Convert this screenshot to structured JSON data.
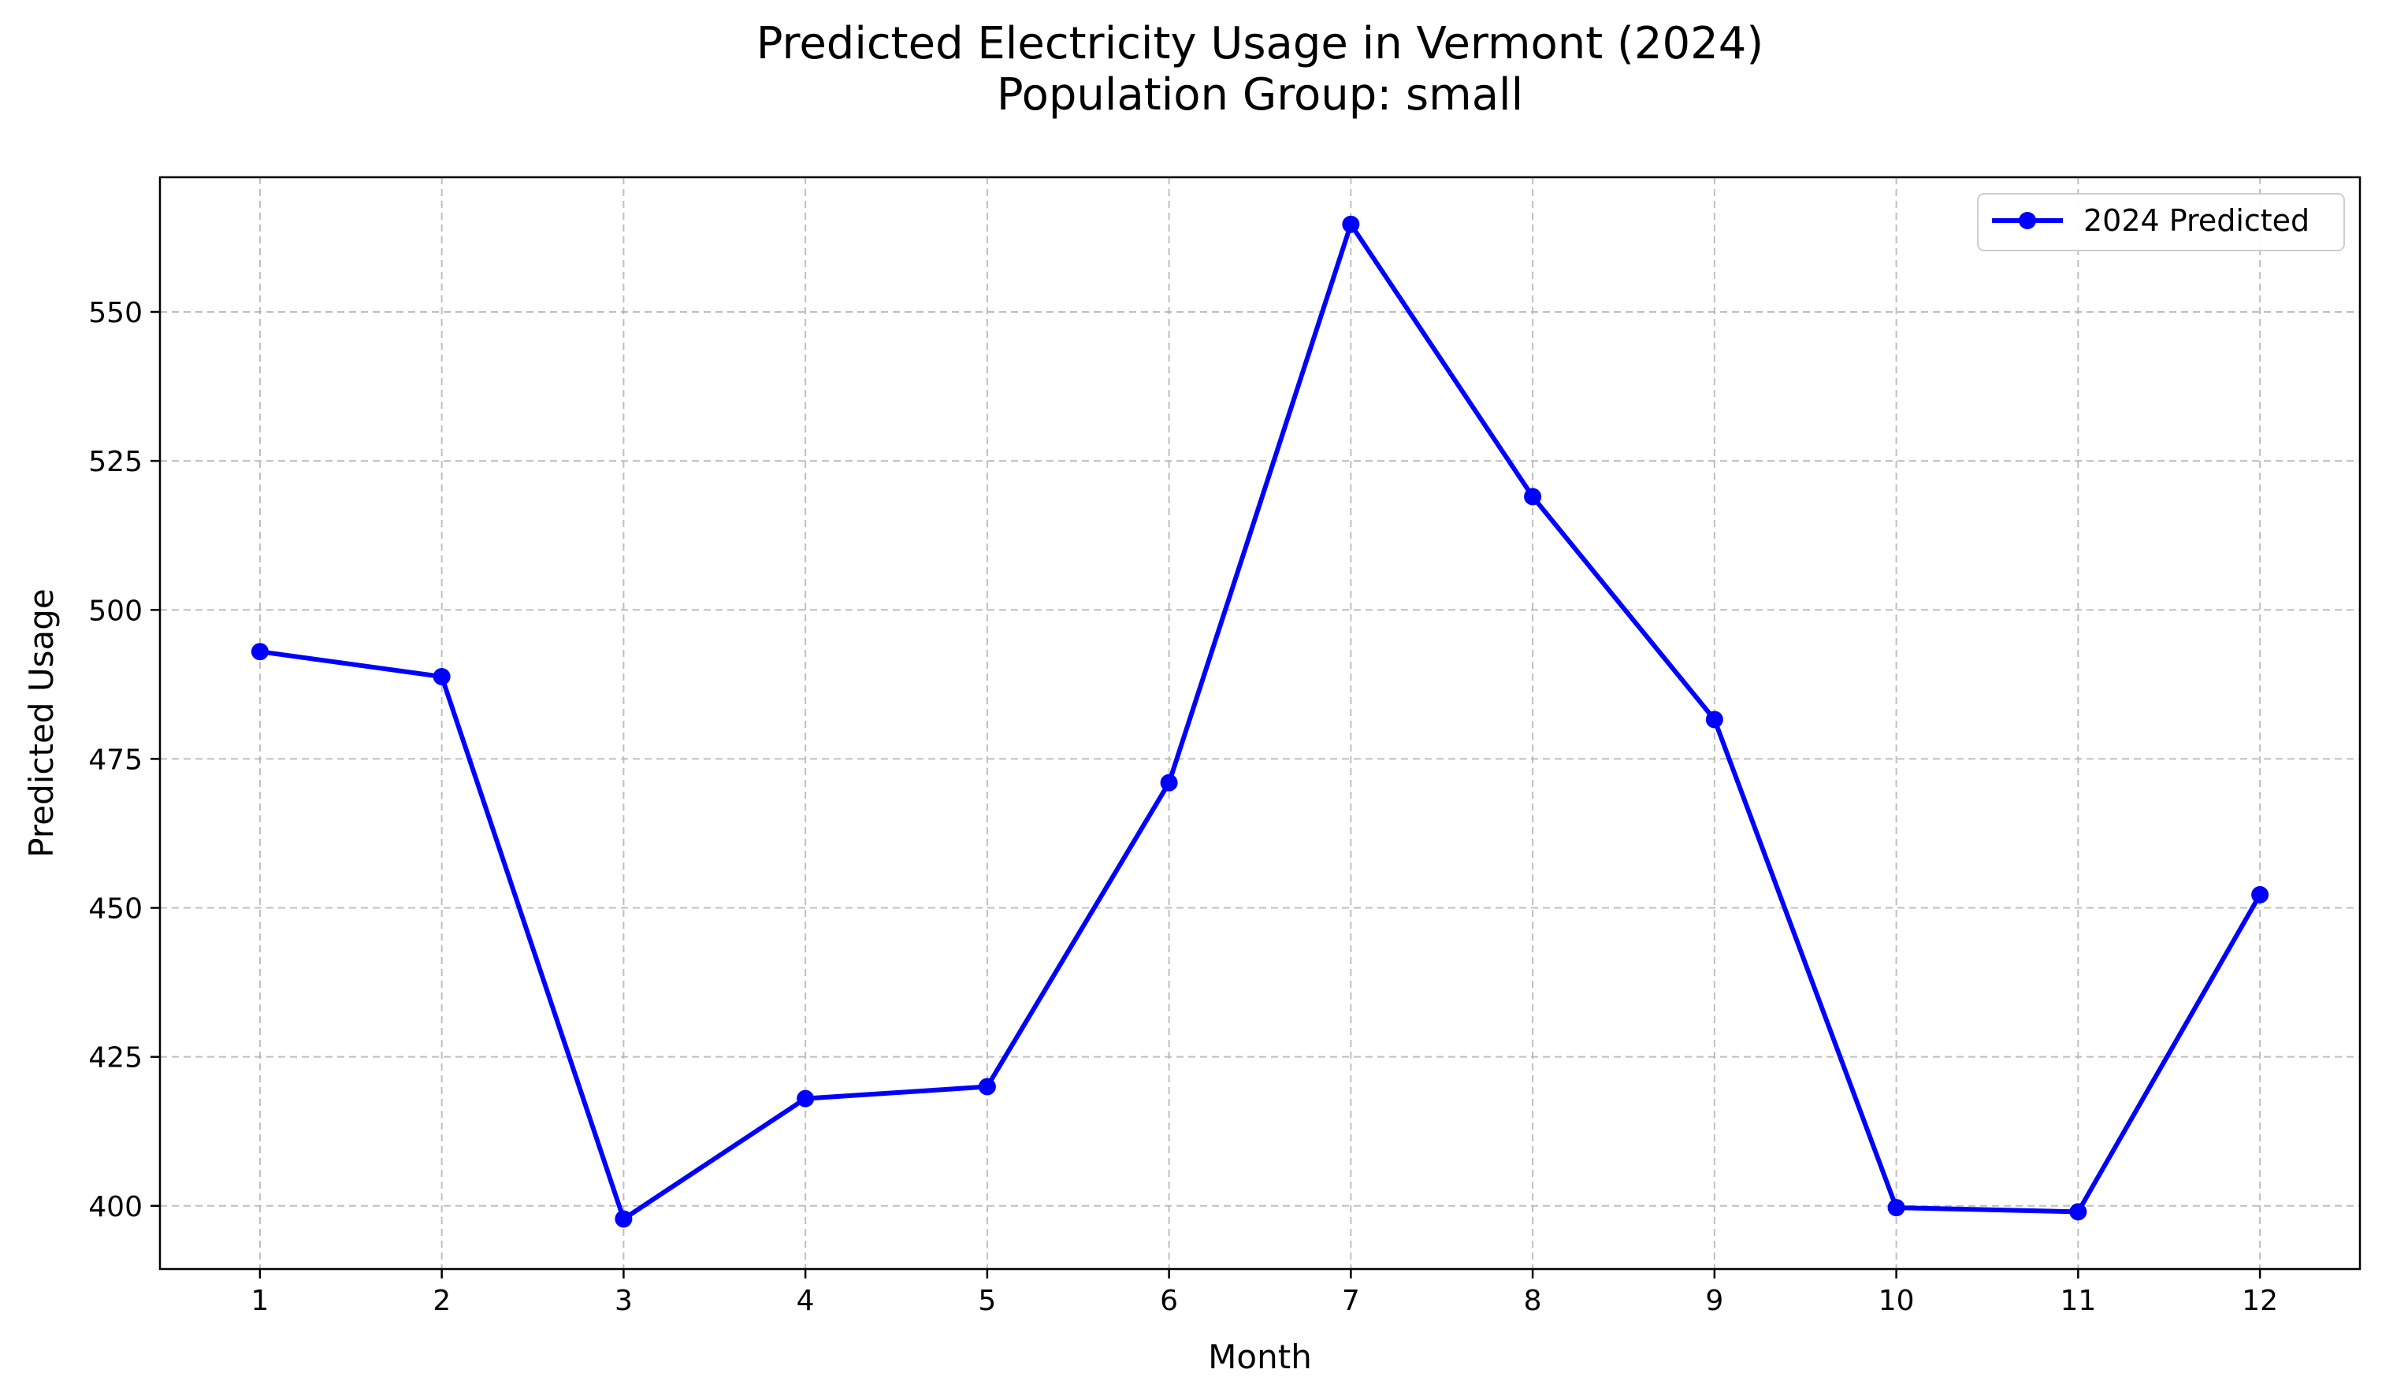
{
  "chart_data": {
    "type": "line",
    "title": "Predicted Electricity Usage in Vermont (2024)",
    "subtitle": "Population Group: small",
    "xlabel": "Month",
    "ylabel": "Predicted Usage",
    "x": [
      1,
      2,
      3,
      4,
      5,
      6,
      7,
      8,
      9,
      10,
      11,
      12
    ],
    "xticks": [
      "1",
      "2",
      "3",
      "4",
      "5",
      "6",
      "7",
      "8",
      "9",
      "10",
      "11",
      "12"
    ],
    "yticks": [
      400,
      425,
      450,
      475,
      500,
      525,
      550
    ],
    "xlim": [
      0.45,
      12.55
    ],
    "ylim": [
      389.4,
      572.6
    ],
    "series": [
      {
        "name": "2024 Predicted",
        "color": "#0000ff",
        "marker": "circle",
        "values": [
          493.0,
          488.8,
          397.8,
          418.0,
          420.0,
          471.0,
          564.7,
          519.0,
          481.6,
          399.7,
          399.0,
          452.2
        ]
      }
    ],
    "grid": true,
    "legend": "top-right"
  }
}
